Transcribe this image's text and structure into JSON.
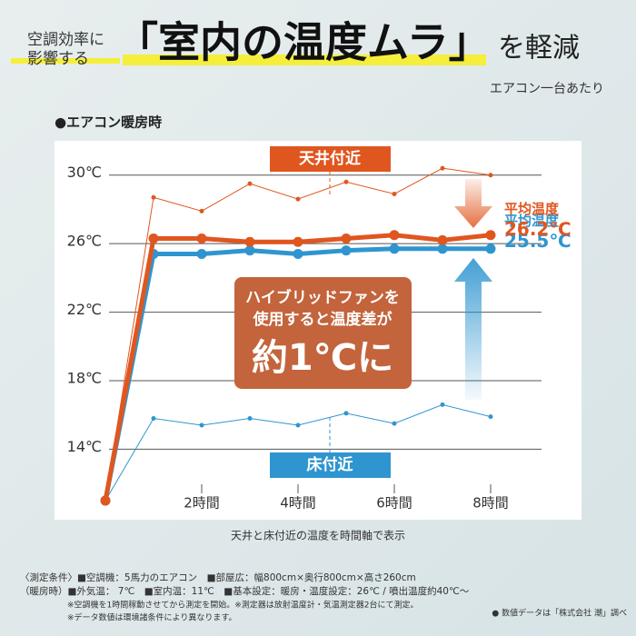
{
  "header": {
    "lead": [
      "空調効率に",
      "影響する"
    ],
    "headline": "「室内の温度ムラ」",
    "headline_suffix": "を軽減",
    "subhead": "エアコン一台あたり"
  },
  "chart_data": {
    "type": "line",
    "title": "●エアコン暖房時",
    "caption": "天井と床付近の温度を時間軸で表示",
    "x": [
      0,
      1,
      2,
      3,
      4,
      5,
      6,
      7,
      8
    ],
    "xlim": [
      0,
      9
    ],
    "xticks": [
      {
        "value": 2,
        "label": "2時間"
      },
      {
        "value": 4,
        "label": "4時間"
      },
      {
        "value": 6,
        "label": "6時間"
      },
      {
        "value": 8,
        "label": "8時間"
      }
    ],
    "ylim": [
      11,
      32
    ],
    "yticks": [
      {
        "value": 14,
        "label": "14℃"
      },
      {
        "value": 18,
        "label": "18℃"
      },
      {
        "value": 22,
        "label": "22℃"
      },
      {
        "value": 26,
        "label": "26℃"
      },
      {
        "value": 30,
        "label": "30℃"
      }
    ],
    "grid": true,
    "series": [
      {
        "name": "天井付近",
        "color": "#e0561f",
        "width": 1,
        "values": [
          11,
          28.7,
          27.9,
          29.5,
          28.6,
          29.6,
          28.9,
          30.4,
          30.0
        ]
      },
      {
        "name": "床付近",
        "color": "#2f95d0",
        "width": 1,
        "values": [
          11,
          15.8,
          15.4,
          15.8,
          15.4,
          16.1,
          15.5,
          16.6,
          15.9
        ]
      },
      {
        "name": "平均温度",
        "color": "#e0561f",
        "width": 5,
        "values": [
          11,
          26.3,
          26.3,
          26.1,
          26.1,
          26.3,
          26.5,
          26.2,
          26.5
        ],
        "average": {
          "value": 26.2,
          "label": "26.2℃"
        }
      },
      {
        "name": "平均温度",
        "color": "#2f95d0",
        "width": 5,
        "values": [
          11,
          25.4,
          25.4,
          25.6,
          25.4,
          25.6,
          25.7,
          25.7,
          25.7
        ],
        "average": {
          "value": 25.5,
          "label": "25.5℃"
        }
      }
    ],
    "callout": [
      "ハイブリッドファンを",
      "使用すると温度差が",
      "約1℃に"
    ]
  },
  "footer": {
    "conditions": [
      "〈測定条件〉■空調機：5馬力のエアコン　■部屋広：幅800cm×奥行800cm×高さ260cm",
      "（暖房時）■外気温： 7℃　■室内温：11℃　■基本設定：暖房・温度設定：26℃ / 噴出温度約40℃〜"
    ],
    "notes": [
      "※空調機を1時間稼動させてから測定を開始。※測定器は放射温度計・気温測定器2台にて測定。",
      "※データ数値は環境諸条件により異なります。"
    ],
    "source": "● 数値データは「株式会社 潮」調べ"
  }
}
